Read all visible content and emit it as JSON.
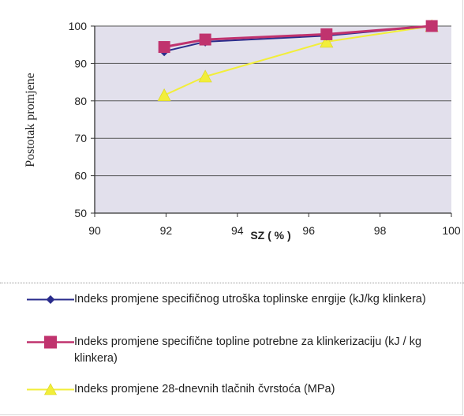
{
  "chart_data": {
    "type": "line",
    "xlabel": "SZ ( % )",
    "ylabel": "Postotak promjene",
    "xlim": [
      90,
      100
    ],
    "ylim": [
      50,
      100
    ],
    "x_ticks": [
      "90",
      "92",
      "94",
      "96",
      "98",
      "100"
    ],
    "y_ticks": [
      "50",
      "60",
      "70",
      "80",
      "90",
      "100"
    ],
    "grid": "horizontal",
    "legend_position": "bottom",
    "colors": {
      "plot_background": "#e2e0ec",
      "grid": "#555555"
    },
    "series": [
      {
        "name": "Indeks promjene specifičnog utroška toplinske enrgije (kJ/kg klinkera)",
        "color": "#2a2c8c",
        "marker": "diamond",
        "x": [
          91.95,
          93.1,
          96.5,
          99.45
        ],
        "y": [
          93.2,
          95.8,
          97.4,
          100
        ]
      },
      {
        "name": "Indeks promjene specifične topline potrebne  za klinkerizaciju (kJ / kg klinkera)",
        "color": "#c0336e",
        "marker": "square",
        "x": [
          91.95,
          93.1,
          96.5,
          99.45
        ],
        "y": [
          94.4,
          96.4,
          97.8,
          100
        ]
      },
      {
        "name": "Indeks promjene 28-dnevnih tlačnih čvrstoća (MPa)",
        "color": "#f2ee3a",
        "marker": "triangle",
        "x": [
          91.95,
          93.1,
          96.5,
          99.45
        ],
        "y": [
          81.5,
          86.5,
          95.8,
          100
        ]
      }
    ]
  }
}
